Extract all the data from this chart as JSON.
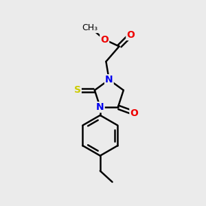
{
  "bg_color": "#ebebeb",
  "atom_colors": {
    "N": "#0000ee",
    "O": "#ee0000",
    "S": "#cccc00",
    "C": "black"
  },
  "font_size": 10,
  "label_font_size": 9,
  "line_width": 1.8,
  "fig_size": [
    3.0,
    3.0
  ],
  "dpi": 100,
  "xlim": [
    0,
    10
  ],
  "ylim": [
    0,
    10
  ]
}
